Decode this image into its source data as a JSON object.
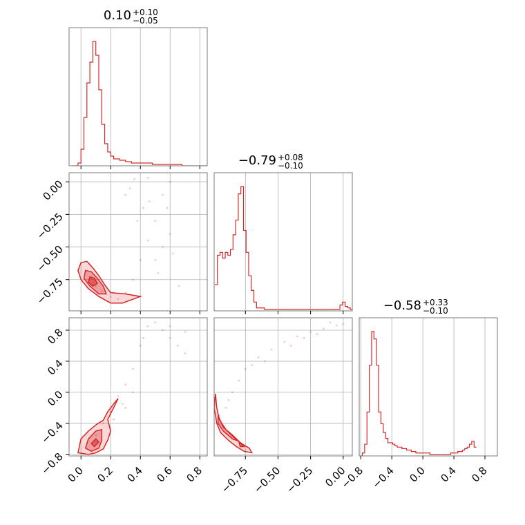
{
  "chart_data": {
    "type": "corner",
    "accent_color": "#d62728",
    "grid": true,
    "parameters": [
      {
        "range": [
          -0.08,
          0.85
        ],
        "ticks": [
          "0.0",
          "0.2",
          "0.4",
          "0.6",
          "0.8"
        ],
        "tick_values": [
          0.0,
          0.2,
          0.4,
          0.6,
          0.8
        ],
        "title": {
          "main": "0.10",
          "sup": "+0.10",
          "sub": "−0.05"
        }
      },
      {
        "range": [
          -0.99,
          0.07
        ],
        "ticks": [
          "−0.75",
          "−0.50",
          "−0.25",
          "0.00"
        ],
        "tick_values": [
          -0.75,
          -0.5,
          -0.25,
          0.0
        ],
        "title": {
          "main": "−0.79",
          "sup": "+0.08",
          "sub": "−0.10"
        }
      },
      {
        "range": [
          -0.82,
          0.96
        ],
        "ticks": [
          "−0.8",
          "−0.4",
          "0.0",
          "0.4",
          "0.8"
        ],
        "tick_values": [
          -0.8,
          -0.4,
          0.0,
          0.4,
          0.8
        ],
        "title": {
          "main": "−0.58",
          "sup": "+0.33",
          "sub": "−0.10"
        }
      }
    ],
    "histograms": [
      {
        "param": 0,
        "bin_start": -0.06,
        "bin_width": 0.02,
        "counts": [
          0,
          0,
          2,
          12,
          35,
          60,
          75,
          90,
          80,
          55,
          30,
          16,
          10,
          7,
          5,
          5,
          4,
          4,
          3,
          3,
          2,
          2,
          2,
          2,
          2,
          2,
          2,
          1,
          1,
          1,
          1,
          1,
          1,
          1,
          1,
          1,
          1,
          0,
          0,
          0,
          0,
          0,
          0,
          0,
          0,
          0
        ]
      },
      {
        "param": 1,
        "bin_start": -0.985,
        "bin_width": 0.02,
        "counts": [
          18,
          38,
          40,
          36,
          40,
          38,
          42,
          52,
          62,
          80,
          85,
          55,
          40,
          24,
          14,
          6,
          2,
          2,
          2,
          1,
          1,
          1,
          1,
          1,
          1,
          1,
          1,
          1,
          1,
          1,
          1,
          1,
          1,
          1,
          1,
          1,
          1,
          1,
          1,
          1,
          1,
          1,
          1,
          1,
          1,
          1,
          1,
          1,
          4,
          6,
          3,
          2,
          1
        ]
      },
      {
        "param": 2,
        "bin_start": -0.81,
        "bin_width": 0.03,
        "counts": [
          0,
          2,
          8,
          30,
          62,
          85,
          80,
          62,
          30,
          22,
          16,
          12,
          9,
          9,
          8,
          7,
          6,
          6,
          5,
          5,
          4,
          4,
          3,
          3,
          2,
          2,
          2,
          2,
          2,
          2,
          1,
          1,
          1,
          1,
          1,
          1,
          1,
          1,
          1,
          2,
          2,
          2,
          3,
          3,
          4,
          5,
          6,
          8,
          10,
          6
        ]
      }
    ],
    "pairs": [
      {
        "x": 0,
        "y": 1,
        "points": [
          [
            0.05,
            -0.75
          ],
          [
            0.1,
            -0.8
          ],
          [
            0.14,
            -0.84
          ],
          [
            0.2,
            -0.88
          ],
          [
            0.25,
            -0.9
          ],
          [
            0.3,
            -0.85
          ],
          [
            0.35,
            -0.75
          ],
          [
            0.4,
            -0.6
          ],
          [
            0.45,
            -0.45
          ],
          [
            0.5,
            -0.3
          ],
          [
            0.55,
            -0.1
          ],
          [
            0.6,
            0.0
          ],
          [
            0.42,
            -0.2
          ],
          [
            0.5,
            -0.6
          ],
          [
            0.55,
            -0.5
          ],
          [
            0.6,
            -0.4
          ],
          [
            0.33,
            -0.05
          ],
          [
            0.36,
            0.02
          ],
          [
            0.45,
            0.03
          ],
          [
            0.58,
            -0.2
          ],
          [
            0.3,
            -0.1
          ],
          [
            0.38,
            -0.3
          ],
          [
            0.46,
            -0.15
          ],
          [
            0.52,
            -0.7
          ],
          [
            0.62,
            -0.55
          ],
          [
            0.66,
            -0.8
          ]
        ]
      },
      {
        "x": 0,
        "y": 2,
        "points": [
          [
            0.1,
            -0.55
          ],
          [
            0.15,
            -0.4
          ],
          [
            0.2,
            -0.25
          ],
          [
            0.25,
            -0.05
          ],
          [
            0.3,
            0.1
          ],
          [
            0.35,
            0.3
          ],
          [
            0.4,
            0.6
          ],
          [
            0.45,
            0.85
          ],
          [
            0.5,
            0.9
          ],
          [
            0.55,
            0.8
          ],
          [
            0.6,
            0.7
          ],
          [
            0.65,
            0.6
          ],
          [
            0.7,
            0.5
          ],
          [
            0.3,
            -0.2
          ],
          [
            0.35,
            0.0
          ],
          [
            0.22,
            -0.35
          ],
          [
            0.28,
            -0.15
          ],
          [
            0.42,
            0.7
          ],
          [
            0.6,
            0.85
          ],
          [
            0.7,
            0.78
          ]
        ]
      },
      {
        "x": 1,
        "y": 2,
        "points": [
          [
            -0.9,
            -0.2
          ],
          [
            -0.85,
            0.0
          ],
          [
            -0.8,
            0.15
          ],
          [
            -0.75,
            0.3
          ],
          [
            -0.65,
            0.45
          ],
          [
            -0.55,
            0.55
          ],
          [
            -0.45,
            0.65
          ],
          [
            -0.35,
            0.72
          ],
          [
            -0.25,
            0.78
          ],
          [
            -0.15,
            0.82
          ],
          [
            -0.05,
            0.86
          ],
          [
            0.0,
            0.88
          ],
          [
            -0.6,
            0.4
          ],
          [
            -0.4,
            0.6
          ],
          [
            -0.2,
            0.75
          ],
          [
            -0.95,
            -0.3
          ],
          [
            -0.88,
            -0.1
          ],
          [
            -0.7,
            0.35
          ],
          [
            -0.3,
            0.7
          ],
          [
            -0.1,
            0.9
          ]
        ]
      }
    ],
    "contours": [
      {
        "x": 0,
        "y": 1,
        "levels": [
          [
            [
              0.0,
              -0.62
            ],
            [
              0.04,
              -0.61
            ],
            [
              0.08,
              -0.66
            ],
            [
              0.12,
              -0.72
            ],
            [
              0.16,
              -0.79
            ],
            [
              0.2,
              -0.85
            ],
            [
              0.3,
              -0.86
            ],
            [
              0.4,
              -0.88
            ],
            [
              0.28,
              -0.93
            ],
            [
              0.2,
              -0.93
            ],
            [
              0.12,
              -0.88
            ],
            [
              0.05,
              -0.82
            ],
            [
              0.0,
              -0.75
            ],
            [
              -0.02,
              -0.68
            ]
          ],
          [
            [
              0.03,
              -0.68
            ],
            [
              0.07,
              -0.69
            ],
            [
              0.11,
              -0.74
            ],
            [
              0.15,
              -0.8
            ],
            [
              0.17,
              -0.86
            ],
            [
              0.12,
              -0.86
            ],
            [
              0.06,
              -0.8
            ],
            [
              0.02,
              -0.74
            ]
          ],
          [
            [
              0.06,
              -0.73
            ],
            [
              0.09,
              -0.74
            ],
            [
              0.11,
              -0.78
            ],
            [
              0.08,
              -0.8
            ],
            [
              0.05,
              -0.77
            ]
          ]
        ]
      },
      {
        "x": 0,
        "y": 2,
        "levels": [
          [
            [
              -0.02,
              -0.78
            ],
            [
              0.0,
              -0.6
            ],
            [
              0.05,
              -0.5
            ],
            [
              0.1,
              -0.42
            ],
            [
              0.15,
              -0.36
            ],
            [
              0.18,
              -0.25
            ],
            [
              0.22,
              -0.15
            ],
            [
              0.25,
              -0.08
            ],
            [
              0.22,
              -0.2
            ],
            [
              0.18,
              -0.35
            ],
            [
              0.2,
              -0.5
            ],
            [
              0.18,
              -0.62
            ],
            [
              0.15,
              -0.73
            ],
            [
              0.1,
              -0.78
            ],
            [
              0.05,
              -0.8
            ]
          ],
          [
            [
              0.03,
              -0.72
            ],
            [
              0.05,
              -0.6
            ],
            [
              0.1,
              -0.5
            ],
            [
              0.14,
              -0.48
            ],
            [
              0.14,
              -0.62
            ],
            [
              0.12,
              -0.72
            ],
            [
              0.07,
              -0.76
            ]
          ],
          [
            [
              0.07,
              -0.66
            ],
            [
              0.1,
              -0.6
            ],
            [
              0.12,
              -0.64
            ],
            [
              0.09,
              -0.7
            ]
          ]
        ]
      },
      {
        "x": 1,
        "y": 2,
        "levels": [
          [
            [
              -0.98,
              -0.02
            ],
            [
              -0.97,
              -0.2
            ],
            [
              -0.95,
              -0.35
            ],
            [
              -0.9,
              -0.48
            ],
            [
              -0.84,
              -0.58
            ],
            [
              -0.78,
              -0.66
            ],
            [
              -0.72,
              -0.72
            ],
            [
              -0.7,
              -0.78
            ],
            [
              -0.76,
              -0.76
            ],
            [
              -0.82,
              -0.7
            ],
            [
              -0.88,
              -0.62
            ],
            [
              -0.94,
              -0.52
            ],
            [
              -0.97,
              -0.4
            ],
            [
              -0.99,
              -0.2
            ]
          ],
          [
            [
              -0.96,
              -0.3
            ],
            [
              -0.92,
              -0.45
            ],
            [
              -0.85,
              -0.55
            ],
            [
              -0.8,
              -0.63
            ],
            [
              -0.85,
              -0.6
            ],
            [
              -0.92,
              -0.5
            ],
            [
              -0.96,
              -0.4
            ]
          ],
          [
            [
              -0.8,
              -0.64
            ],
            [
              -0.76,
              -0.7
            ],
            [
              -0.79,
              -0.7
            ]
          ]
        ]
      }
    ]
  }
}
